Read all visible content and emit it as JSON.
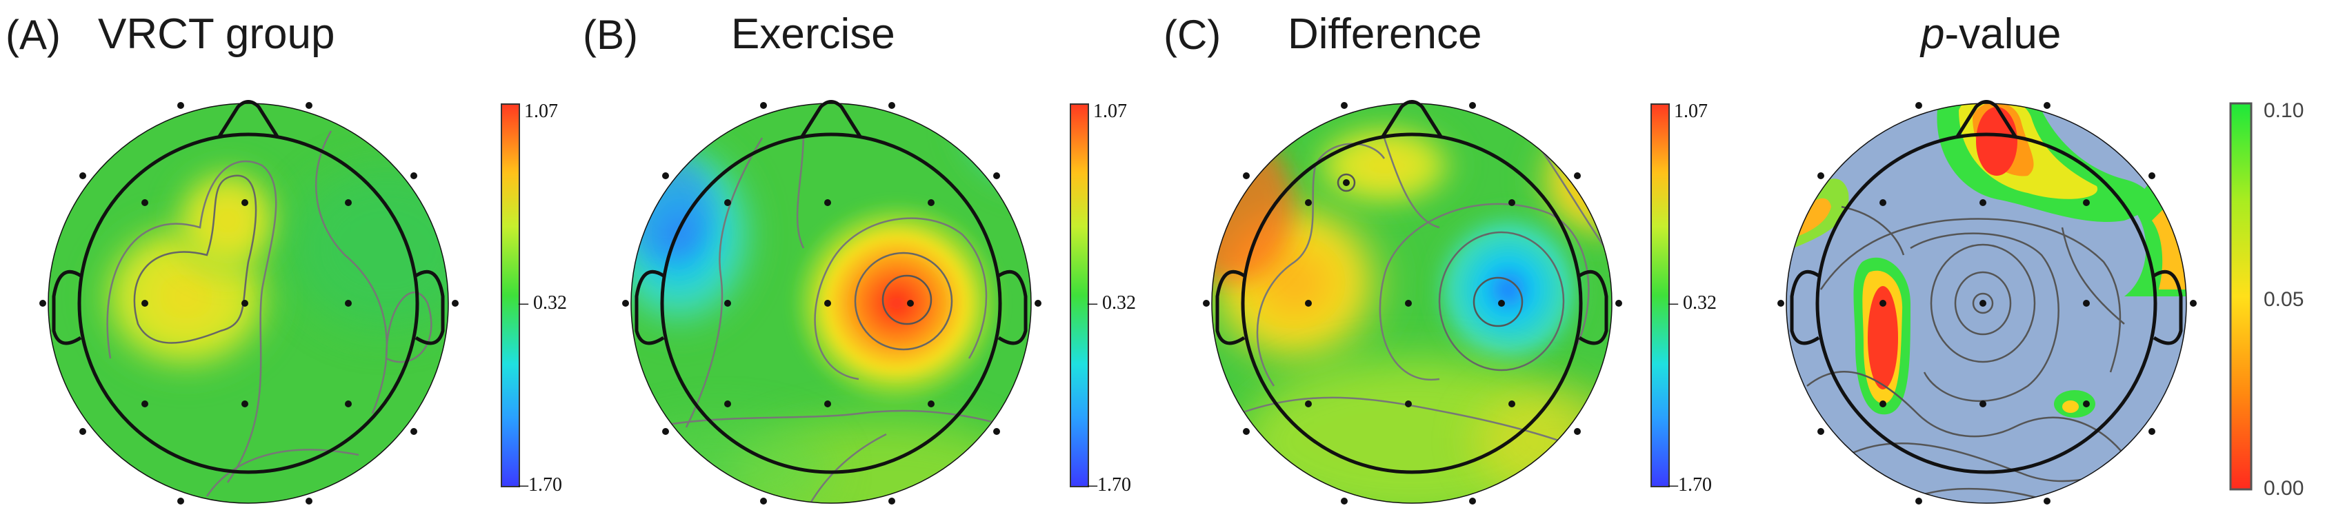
{
  "panels": [
    {
      "letter": "(A)",
      "title": "VRCT group",
      "colorbar": {
        "max": "1.07",
        "mid": "– 0.32",
        "min": "–1.70"
      }
    },
    {
      "letter": "(B)",
      "title": "Exercise",
      "colorbar": {
        "max": "1.07",
        "mid": "– 0.32",
        "min": "–1.70"
      }
    },
    {
      "letter": "(C)",
      "title": "Difference",
      "colorbar": {
        "max": "1.07",
        "mid": "– 0.32",
        "min": "–1.70"
      }
    },
    {
      "title_italic": "p",
      "title_rest": "-value",
      "colorbar": {
        "max": "0.10",
        "mid": "0.05",
        "min": "0.00"
      }
    }
  ],
  "colors": {
    "scalp_base": "#45c940",
    "positive": "#ff3b1f",
    "negative": "#2a86ff",
    "nonsig": "#94aed4",
    "outline": "#111111"
  }
}
